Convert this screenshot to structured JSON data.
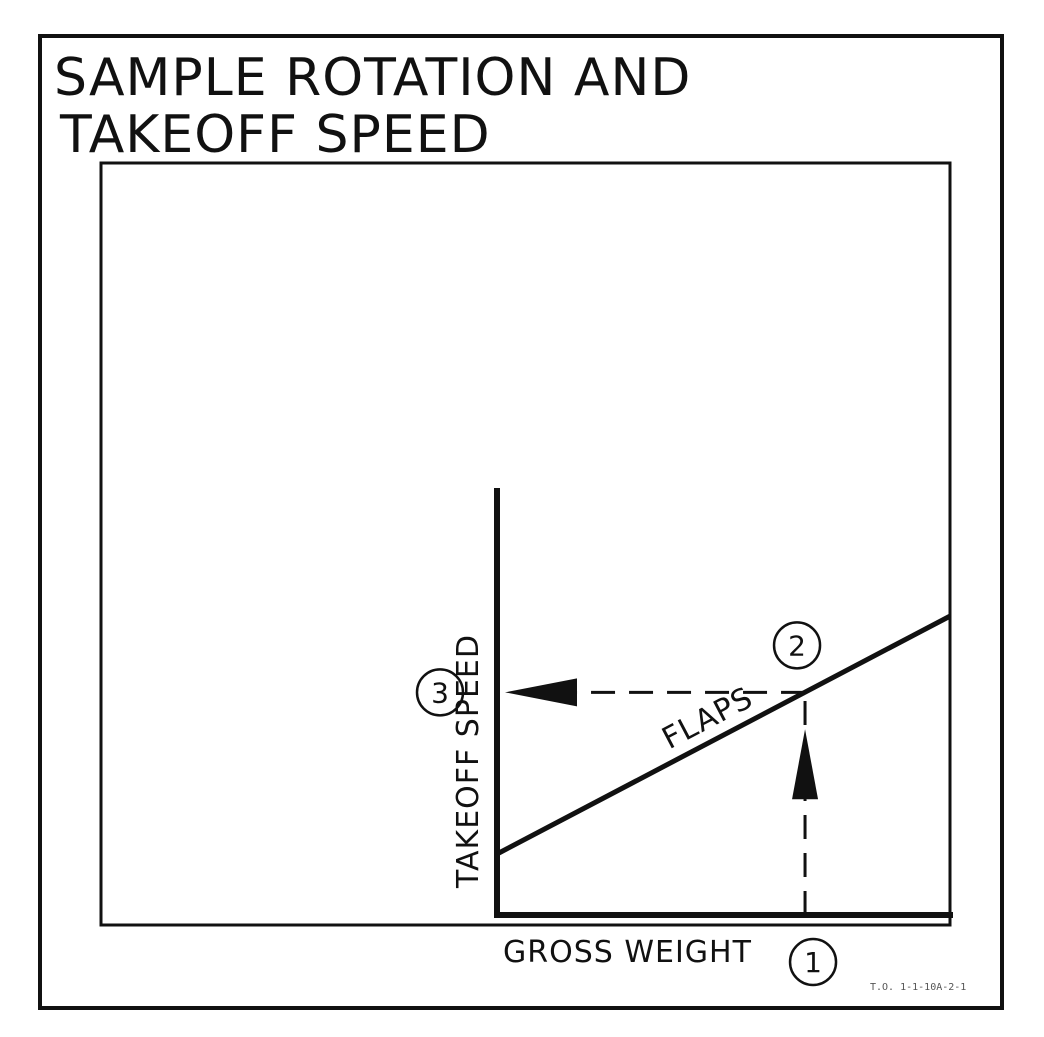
{
  "chart_data": {
    "type": "line",
    "title_line1": "SAMPLE ROTATION AND",
    "title_line2": "TAKEOFF SPEED",
    "xlabel": "GROSS WEIGHT",
    "ylabel": "TAKEOFF SPEED",
    "series": [
      {
        "name": "FLAPS",
        "x": [
          0,
          1
        ],
        "y": [
          0.2,
          0.98
        ]
      }
    ],
    "xlim": [
      0,
      1
    ],
    "ylim": [
      0,
      1.4
    ],
    "grid": false,
    "example": {
      "steps": [
        {
          "label": "1",
          "x": 0.68,
          "y": 0
        },
        {
          "label": "2",
          "x": 0.68,
          "y": 0.73
        },
        {
          "label": "3",
          "x": 0,
          "y": 0.73
        }
      ]
    },
    "figure_id": "T.O. 1-1-10A-2-1",
    "colors": {
      "ink": "#111111",
      "background": "#ffffff"
    }
  }
}
